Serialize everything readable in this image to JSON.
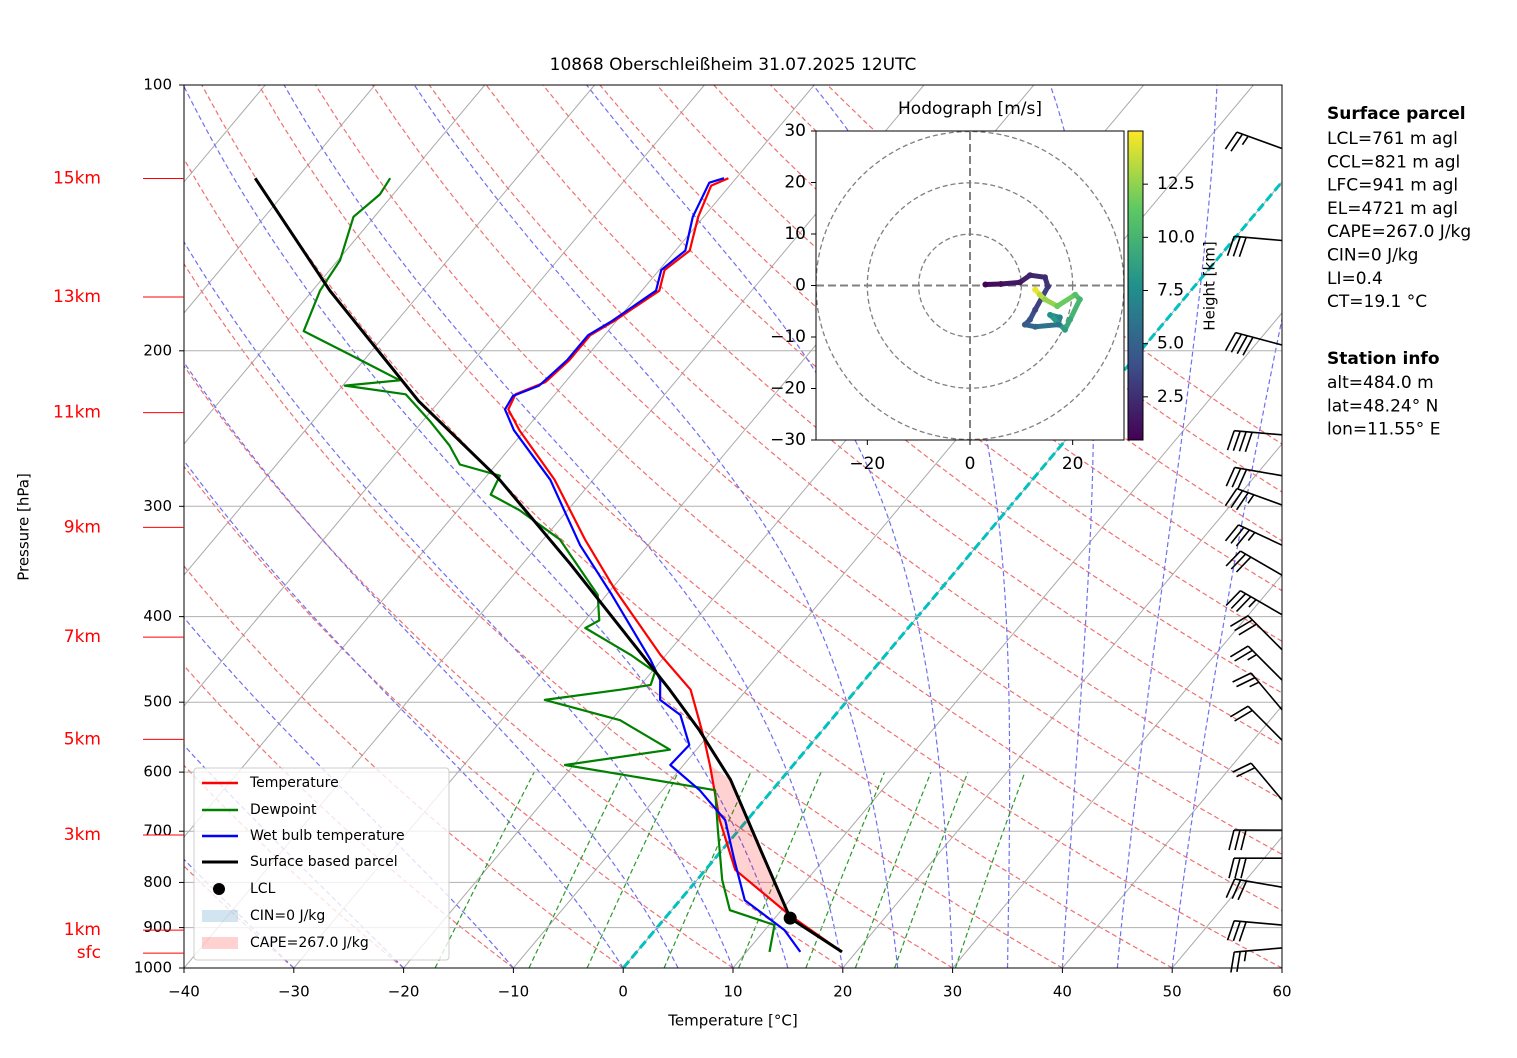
{
  "chart_data": {
    "type": "skewt",
    "title": "10868 Oberschleißheim 31.07.2025 12UTC",
    "x_label": "Temperature [°C]",
    "y_label": "Pressure [hPa]",
    "xlim": [
      -40,
      60
    ],
    "xticks": [
      {
        "value": -40,
        "label": "−40"
      },
      {
        "value": -30,
        "label": "−30"
      },
      {
        "value": -20,
        "label": "−20"
      },
      {
        "value": -10,
        "label": "−10"
      },
      0,
      10,
      20,
      30,
      40,
      50,
      60
    ],
    "ylim": [
      1000,
      100
    ],
    "yticks": [
      100,
      200,
      300,
      400,
      500,
      600,
      700,
      800,
      900,
      1000
    ],
    "log_scale": true,
    "grid": true,
    "freezing_isotherm": 0,
    "series": [
      {
        "name": "Temperature",
        "color": "#ff0000",
        "pressure": [
          959,
          871,
          774,
          680,
          589,
          552,
          524,
          484,
          442,
          373,
          327,
          280,
          246,
          233,
          224,
          217,
          205,
          192,
          185,
          171,
          162,
          154,
          141,
          130,
          127.5
        ],
        "values": [
          18.7,
          11.1,
          2.7,
          -2.5,
          -7.6,
          -10,
          -12,
          -15.1,
          -20.5,
          -29.6,
          -36.2,
          -43.5,
          -50.5,
          -53.1,
          -53.6,
          -51.8,
          -51.3,
          -51.3,
          -50.2,
          -48.4,
          -49.5,
          -48.7,
          -50.5,
          -51.7,
          -50.7
        ]
      },
      {
        "name": "Dewpoint",
        "color": "#008000",
        "pressure": [
          959,
          894,
          860,
          795,
          698,
          629,
          589,
          566,
          524,
          497,
          484,
          478,
          462,
          442,
          412,
          404,
          378,
          327,
          303,
          291,
          277,
          269,
          256,
          240,
          224,
          219,
          216,
          202,
          190,
          171,
          158,
          141,
          133,
          127.5
        ],
        "values": [
          12.1,
          10.5,
          5.3,
          2.3,
          -1.9,
          -5.2,
          -20.8,
          -12.4,
          -19.2,
          -27.6,
          -21.5,
          -19.1,
          -19.7,
          -23.2,
          -29.4,
          -28.7,
          -30.8,
          -38.5,
          -44.4,
          -48.2,
          -48.8,
          -53.3,
          -55.7,
          -59.4,
          -63.6,
          -69.8,
          -65.2,
          -71.7,
          -77.7,
          -79.3,
          -79.8,
          -81.9,
          -81.2,
          -81.5
        ]
      },
      {
        "name": "Wet bulb temperature",
        "color": "#0000ff",
        "pressure": [
          959,
          906,
          838,
          755,
          680,
          629,
          589,
          559,
          517,
          497,
          472,
          448,
          378,
          332,
          280,
          246,
          233,
          225,
          219,
          205,
          192,
          185,
          171,
          162,
          154,
          141,
          129,
          127.5
        ],
        "values": [
          14.9,
          11.8,
          5.9,
          1.9,
          -2,
          -6.6,
          -11.2,
          -11,
          -14.1,
          -17.1,
          -18.6,
          -21,
          -29.5,
          -36.2,
          -43.9,
          -51,
          -53.4,
          -53.7,
          -52.1,
          -51.5,
          -51.5,
          -50.4,
          -48.7,
          -49.8,
          -49.1,
          -51,
          -52.1,
          -51.1
        ]
      },
      {
        "name": "Surface based parcel",
        "color": "#000000",
        "pressure": [
          959,
          878,
          735,
          612,
          538,
          484,
          425,
          349,
          280,
          228,
          171,
          127.5
        ],
        "values": [
          18.7,
          11.4,
          3.5,
          -4.6,
          -11.2,
          -17,
          -24.4,
          -35.6,
          -48.5,
          -61.9,
          -78.4,
          -93.8
        ]
      }
    ],
    "lcl": {
      "name": "LCL",
      "pressure": 878,
      "temperature": 11.4
    },
    "cin_label": "CIN=0 J/kg",
    "cape_label": "CAPE=267.0 J/kg",
    "height_labels": [
      {
        "label": "15km",
        "pressure": 127.6
      },
      {
        "label": "13km",
        "pressure": 173.8
      },
      {
        "label": "11km",
        "pressure": 235
      },
      {
        "label": "9km",
        "pressure": 317
      },
      {
        "label": "7km",
        "pressure": 422
      },
      {
        "label": "5km",
        "pressure": 551
      },
      {
        "label": "3km",
        "pressure": 707
      },
      {
        "label": "1km",
        "pressure": 906
      },
      {
        "label": "sfc",
        "pressure": 962
      }
    ],
    "wind_barbs": {
      "pressure": [
        949,
        894,
        810,
        751,
        698,
        645,
        552,
        510,
        472,
        436,
        398,
        359,
        332,
        299,
        277,
        249,
        197,
        150,
        118
      ],
      "speed": [
        25,
        30,
        30,
        30,
        30,
        20,
        20,
        25,
        25,
        30,
        35,
        30,
        35,
        35,
        30,
        40,
        40,
        30,
        25
      ],
      "direction": [
        265,
        275,
        280,
        270,
        270,
        320,
        315,
        320,
        315,
        315,
        300,
        300,
        295,
        290,
        280,
        275,
        285,
        275,
        290
      ]
    },
    "hodograph": {
      "title": "Hodograph [m/s]",
      "xlim": [
        -30,
        30
      ],
      "ylim": [
        -30,
        30
      ],
      "xticks": [
        {
          "value": -20,
          "label": "−20"
        },
        0,
        20
      ],
      "yticks": [
        {
          "value": -30,
          "label": "−30"
        },
        {
          "value": -20,
          "label": "−20"
        },
        {
          "value": -10,
          "label": "−10"
        },
        0,
        10,
        20,
        30
      ],
      "rings": [
        10,
        20,
        30
      ],
      "u": [
        3,
        6,
        9.7,
        11.7,
        14.6,
        15.2,
        12.7,
        11.7,
        10.7,
        12.7,
        17.2,
        17.5,
        15.6,
        18.5,
        19.5,
        21.4,
        20.5,
        17,
        14.6,
        13.6,
        12.7
      ],
      "v": [
        0.2,
        0.3,
        0.6,
        2,
        1.6,
        -0.2,
        -4.7,
        -6.6,
        -7.6,
        -8,
        -7.6,
        -6.2,
        -5.7,
        -8.6,
        -6.6,
        -2.7,
        -1.8,
        -4,
        -2.7,
        -1.8,
        -0.8
      ],
      "height": [
        0.6,
        1.0,
        1.4,
        1.9,
        2.3,
        2.8,
        3.4,
        4.0,
        4.5,
        5.2,
        6.0,
        6.8,
        7.6,
        8.4,
        9.2,
        10.0,
        10.8,
        11.6,
        12.6,
        13.6,
        14.6
      ],
      "colorbar_label": "Height [km]",
      "colorbar_lim": [
        0.47,
        15.0
      ],
      "colorbar_ticks": [
        2.5,
        {
          "value": 5,
          "label": "5.0"
        },
        7.5,
        {
          "value": 10,
          "label": "10.0"
        },
        12.5
      ]
    },
    "surface_parcel": {
      "title": "Surface parcel",
      "lines": [
        "LCL=761 m agl",
        "CCL=821 m agl",
        "LFC=941 m agl",
        "EL=4721 m agl",
        "CAPE=267.0 J/kg",
        "CIN=0 J/kg",
        "LI=0.4",
        "CT=19.1 °C"
      ]
    },
    "station_info": {
      "title": "Station info",
      "lines": [
        "alt=484.0 m",
        "lat=48.24° N",
        "lon=11.55° E"
      ]
    }
  }
}
